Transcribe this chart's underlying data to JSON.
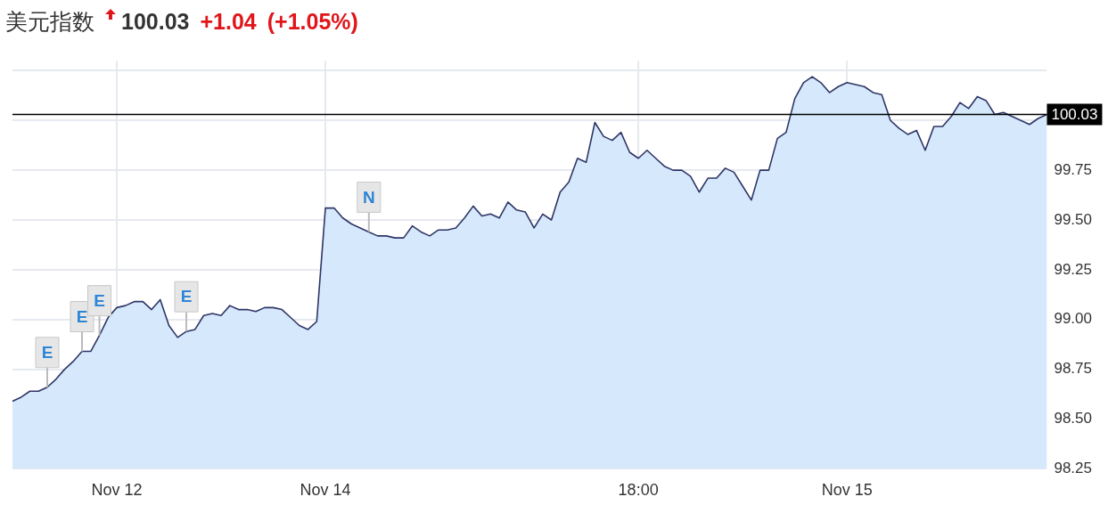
{
  "chart_data": {
    "type": "area",
    "title": "美元指数",
    "annotations": [
      "100.03",
      "+1.04",
      "(+1.05%)",
      {
        "text": "E",
        "y": 98.66
      },
      {
        "text": "E",
        "y": 98.84
      },
      {
        "text": "E",
        "y": 98.92
      },
      {
        "text": "E",
        "y": 98.94
      },
      {
        "text": "N",
        "y": 99.44
      }
    ],
    "categories": [
      null,
      null,
      null,
      null,
      null,
      null,
      null,
      null,
      null,
      null,
      null,
      null,
      "Nov 12",
      null,
      null,
      null,
      null,
      null,
      null,
      null,
      null,
      null,
      null,
      null,
      null,
      null,
      null,
      null,
      null,
      null,
      null,
      null,
      null,
      null,
      null,
      null,
      "Nov 14",
      null,
      null,
      null,
      null,
      null,
      null,
      null,
      null,
      null,
      null,
      null,
      null,
      null,
      null,
      null,
      null,
      null,
      null,
      null,
      null,
      null,
      null,
      null,
      null,
      null,
      null,
      null,
      null,
      null,
      null,
      null,
      null,
      null,
      null,
      null,
      "18:00",
      null,
      null,
      null,
      null,
      null,
      null,
      null,
      null,
      null,
      null,
      null,
      null,
      null,
      null,
      null,
      null,
      null,
      null,
      null,
      null,
      null,
      null,
      null,
      "Nov 15",
      null,
      null,
      null,
      null,
      null,
      null,
      null,
      null,
      null,
      null,
      null,
      null,
      null,
      null,
      null,
      null,
      null,
      null,
      null,
      null,
      null,
      null,
      null
    ],
    "series": [
      {
        "color": "#2e3566",
        "values": [
          98.59,
          98.61,
          98.64,
          98.64,
          98.66,
          98.7,
          98.75,
          98.79,
          98.84,
          98.84,
          98.92,
          99.01,
          99.06,
          99.07,
          99.09,
          99.09,
          99.05,
          99.1,
          98.97,
          98.91,
          98.94,
          98.95,
          99.02,
          99.03,
          99.02,
          99.07,
          99.05,
          99.05,
          99.04,
          99.06,
          99.06,
          99.05,
          99.01,
          98.97,
          98.95,
          98.99,
          99.56,
          99.56,
          99.51,
          99.48,
          99.46,
          99.44,
          99.42,
          99.42,
          99.41,
          99.41,
          99.47,
          99.44,
          99.42,
          99.45,
          99.45,
          99.46,
          99.51,
          99.57,
          99.52,
          99.53,
          99.51,
          99.59,
          99.55,
          99.54,
          99.46,
          99.53,
          99.5,
          99.64,
          99.69,
          99.81,
          99.79,
          99.99,
          99.92,
          99.9,
          99.94,
          99.84,
          99.81,
          99.85,
          99.81,
          99.77,
          99.75,
          99.75,
          99.72,
          99.64,
          99.71,
          99.71,
          99.76,
          99.74,
          99.67,
          99.6,
          99.75,
          99.75,
          99.91,
          99.94,
          100.11,
          100.19,
          100.22,
          100.19,
          100.14,
          100.17,
          100.19,
          100.18,
          100.17,
          100.14,
          100.13,
          100,
          99.96,
          99.93,
          99.95,
          99.85,
          99.97,
          99.97,
          100.02,
          100.09,
          100.06,
          100.12,
          100.1,
          100.03,
          100.04,
          100.02,
          100,
          99.98,
          100.01,
          100.03
        ]
      }
    ],
    "ylim": [
      98.25,
      100.3
    ],
    "yticks": [
      {
        "value": 98.25,
        "label": "98.25"
      },
      {
        "value": 98.5,
        "label": "98.50"
      },
      {
        "value": 98.75,
        "label": "98.75"
      },
      {
        "value": 99,
        "label": "99.00"
      },
      {
        "value": 99.25,
        "label": "99.25"
      },
      {
        "value": 99.5,
        "label": "99.50"
      },
      {
        "value": 99.75,
        "label": "99.75"
      },
      {
        "value": 100,
        "label": null
      },
      {
        "value": 100.25,
        "label": null
      }
    ],
    "ref_lines": [
      {
        "axis": "y",
        "value": 100.03,
        "label": "100.03",
        "color": "#000000"
      }
    ],
    "grid": true,
    "legend": false,
    "marker": "none",
    "line_style": "solid"
  }
}
